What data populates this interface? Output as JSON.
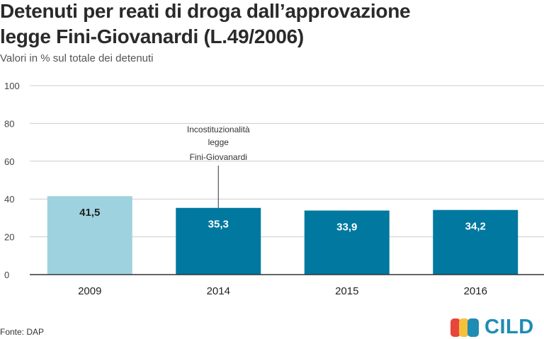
{
  "title_line1": "Detenuti per reati di droga dall’approvazione",
  "title_line2": "legge Fini-Giovanardi (L.49/2006)",
  "subtitle": "Valori in % sul totale dei detenuti",
  "source": "Fonte: DAP",
  "logo_text": "CILD",
  "colors": {
    "bar_light": "#9fd2df",
    "bar_dark": "#00789f",
    "grid": "#cccccc",
    "axis": "#333333",
    "logo_red": "#e8453c",
    "logo_yellow": "#f6c13a",
    "logo_blue": "#1f8cb4"
  },
  "chart_data": {
    "type": "bar",
    "categories": [
      "2009",
      "2014",
      "2015",
      "2016"
    ],
    "values": [
      41.5,
      35.3,
      33.9,
      34.2
    ],
    "value_labels": [
      "41,5",
      "35,3",
      "33,9",
      "34,2"
    ],
    "ylim": [
      0,
      100
    ],
    "yticks": [
      0,
      20,
      40,
      60,
      80,
      100
    ],
    "grid": true,
    "highlight_first": true,
    "annotation": {
      "category": "2014",
      "lines": [
        "Incostituzionalità",
        "legge",
        "Fini-Giovanardi"
      ]
    }
  }
}
